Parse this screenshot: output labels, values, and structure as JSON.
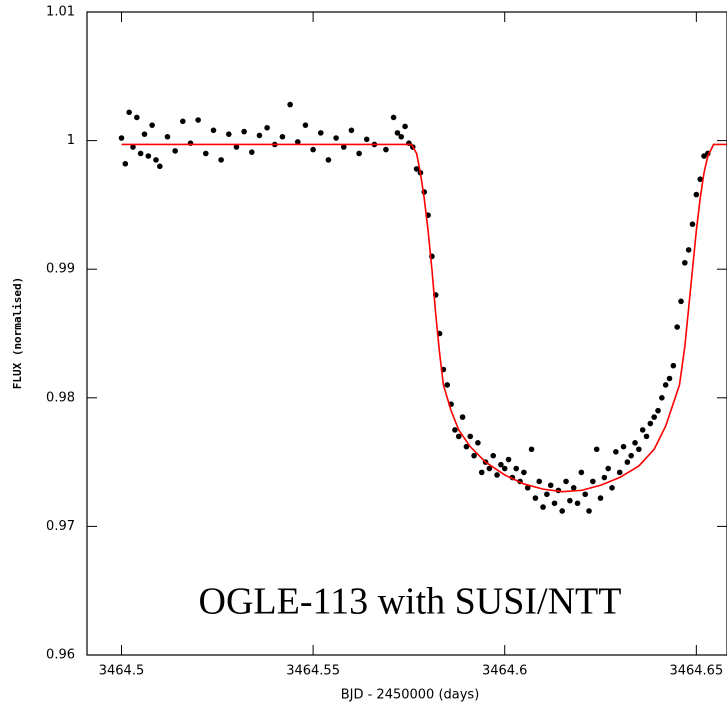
{
  "chart_data": {
    "type": "scatter",
    "annotation": "OGLE-113 with SUSI/NTT",
    "xlabel": "BJD - 2450000 (days)",
    "ylabel": "FLUX (normalised)",
    "xlim": [
      3464.491,
      3464.658
    ],
    "ylim": [
      0.96,
      1.01
    ],
    "xticks": [
      3464.5,
      3464.55,
      3464.6,
      3464.65
    ],
    "yticks": [
      0.96,
      0.97,
      0.98,
      0.99,
      1,
      1.01
    ],
    "series": [
      {
        "style": "points",
        "color": "#000000",
        "x": [
          3464.5,
          3464.501,
          3464.502,
          3464.503,
          3464.504,
          3464.505,
          3464.506,
          3464.507,
          3464.508,
          3464.509,
          3464.51,
          3464.512,
          3464.514,
          3464.516,
          3464.518,
          3464.52,
          3464.522,
          3464.524,
          3464.526,
          3464.528,
          3464.53,
          3464.532,
          3464.534,
          3464.536,
          3464.538,
          3464.54,
          3464.542,
          3464.544,
          3464.546,
          3464.548,
          3464.55,
          3464.552,
          3464.554,
          3464.556,
          3464.558,
          3464.56,
          3464.562,
          3464.564,
          3464.566,
          3464.569,
          3464.571,
          3464.572,
          3464.573,
          3464.574,
          3464.575,
          3464.576,
          3464.577,
          3464.578,
          3464.579,
          3464.58,
          3464.581,
          3464.582,
          3464.583,
          3464.584,
          3464.585,
          3464.586,
          3464.587,
          3464.588,
          3464.589,
          3464.59,
          3464.591,
          3464.592,
          3464.593,
          3464.594,
          3464.595,
          3464.596,
          3464.597,
          3464.598,
          3464.599,
          3464.6,
          3464.601,
          3464.602,
          3464.603,
          3464.604,
          3464.605,
          3464.606,
          3464.607,
          3464.608,
          3464.609,
          3464.61,
          3464.611,
          3464.612,
          3464.613,
          3464.614,
          3464.615,
          3464.616,
          3464.617,
          3464.618,
          3464.619,
          3464.62,
          3464.621,
          3464.622,
          3464.623,
          3464.624,
          3464.625,
          3464.626,
          3464.627,
          3464.628,
          3464.629,
          3464.63,
          3464.631,
          3464.632,
          3464.633,
          3464.634,
          3464.635,
          3464.636,
          3464.637,
          3464.638,
          3464.639,
          3464.64,
          3464.641,
          3464.642,
          3464.643,
          3464.644,
          3464.645,
          3464.646,
          3464.647,
          3464.648,
          3464.649,
          3464.65,
          3464.651,
          3464.652,
          3464.653
        ],
        "values": [
          1.0002,
          0.9982,
          1.0022,
          0.9995,
          1.0018,
          0.999,
          1.0005,
          0.9988,
          1.0012,
          0.9985,
          0.998,
          1.0003,
          0.9992,
          1.0015,
          0.9998,
          1.0016,
          0.999,
          1.0008,
          0.9985,
          1.0005,
          0.9995,
          1.0007,
          0.9991,
          1.0004,
          1.001,
          0.9997,
          1.0003,
          1.0028,
          0.9999,
          1.0012,
          0.9993,
          1.0006,
          0.9985,
          1.0002,
          0.9995,
          1.0008,
          0.999,
          1.0001,
          0.9997,
          0.9993,
          1.0018,
          1.0006,
          1.0003,
          1.0011,
          0.9998,
          0.9995,
          0.9978,
          0.9975,
          0.996,
          0.9942,
          0.991,
          0.988,
          0.985,
          0.9822,
          0.981,
          0.9795,
          0.9775,
          0.977,
          0.9785,
          0.9762,
          0.977,
          0.9755,
          0.9765,
          0.9742,
          0.975,
          0.9745,
          0.9755,
          0.974,
          0.9748,
          0.9745,
          0.9752,
          0.9738,
          0.9745,
          0.9735,
          0.9742,
          0.973,
          0.976,
          0.9722,
          0.9735,
          0.9715,
          0.9725,
          0.9732,
          0.9718,
          0.9728,
          0.9712,
          0.9735,
          0.972,
          0.973,
          0.9718,
          0.9742,
          0.9725,
          0.9712,
          0.9735,
          0.976,
          0.9722,
          0.9738,
          0.9745,
          0.973,
          0.9758,
          0.9742,
          0.9762,
          0.975,
          0.9755,
          0.9765,
          0.976,
          0.9775,
          0.977,
          0.978,
          0.9785,
          0.979,
          0.98,
          0.981,
          0.9815,
          0.9825,
          0.9855,
          0.9875,
          0.9905,
          0.9915,
          0.9935,
          0.9958,
          0.997,
          0.9988,
          0.999
        ]
      },
      {
        "style": "line",
        "color": "#ff0000",
        "x": [
          3464.5,
          3464.5757,
          3464.577,
          3464.578,
          3464.579,
          3464.58,
          3464.581,
          3464.582,
          3464.583,
          3464.584,
          3464.586,
          3464.588,
          3464.591,
          3464.595,
          3464.6,
          3464.605,
          3464.61,
          3464.615,
          3464.62,
          3464.625,
          3464.63,
          3464.635,
          3464.639,
          3464.642,
          3464.6456,
          3464.647,
          3464.648,
          3464.649,
          3464.65,
          3464.651,
          3464.652,
          3464.653,
          3464.6545,
          3464.658
        ],
        "values": [
          0.9997,
          0.9997,
          0.999,
          0.9975,
          0.9955,
          0.993,
          0.99,
          0.9865,
          0.9835,
          0.981,
          0.979,
          0.9775,
          0.9762,
          0.975,
          0.974,
          0.9733,
          0.9729,
          0.9727,
          0.9728,
          0.9732,
          0.9738,
          0.9747,
          0.976,
          0.9778,
          0.981,
          0.984,
          0.987,
          0.99,
          0.993,
          0.9955,
          0.9975,
          0.9988,
          0.9997,
          0.9997
        ]
      }
    ]
  }
}
